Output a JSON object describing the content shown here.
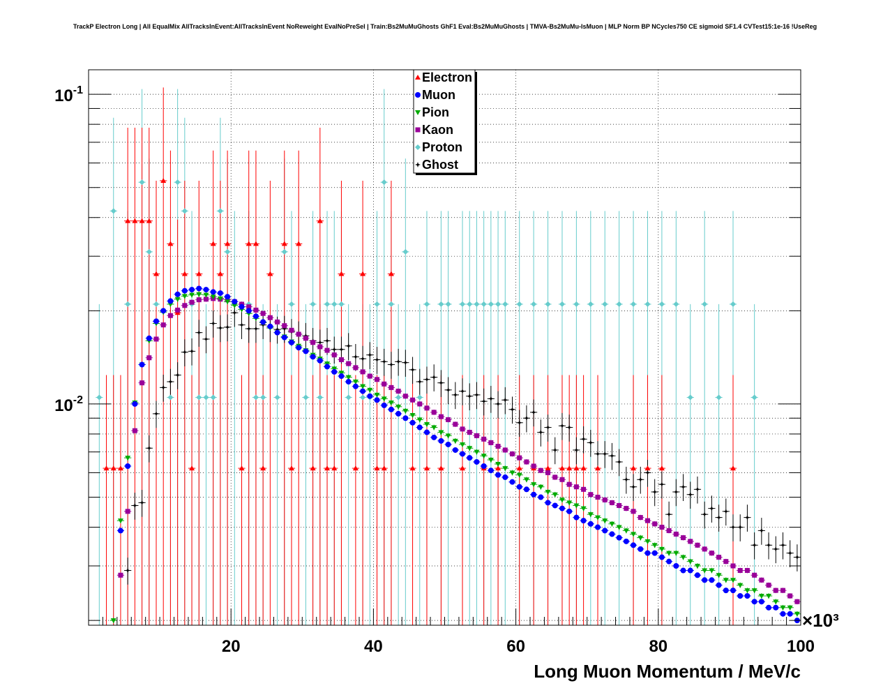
{
  "chart_data": {
    "type": "scatter",
    "title": "TrackP Electron Long | All EqualMix AllTracksInEvent:AllTracksInEvent NoReweight EvalNoPreSel | Train:Bs2MuMuGhosts GhF1 Eval:Bs2MuMuGhosts | TMVA-Bs2MuMu-IsMuon | MLP Norm BP NCycles750 CE sigmoid SF1.4 CVTest15:1e-16 !UseReg",
    "xlabel": "Long Muon Momentum / MeV/c",
    "x_multiplier": "×10³",
    "xlim": [
      0,
      100000
    ],
    "x_ticks": [
      20000,
      40000,
      60000,
      80000,
      100000
    ],
    "x_tick_labels": [
      "20",
      "40",
      "60",
      "80",
      "100"
    ],
    "ylim": [
      0.00193,
      0.12
    ],
    "y_scale": "log",
    "y_ticks": [
      0.01,
      0.1
    ],
    "y_tick_labels": [
      {
        "base": "10",
        "exp": "-2"
      },
      {
        "base": "10",
        "exp": "-1"
      }
    ],
    "grid": true,
    "legend_position": "top-center",
    "legend_labels": [
      "Electron",
      "Muon",
      "Pion",
      "Kaon",
      "Proton",
      "Ghost"
    ],
    "series": [
      {
        "name": "Electron",
        "marker": "triangle-up",
        "color": "#ff0000",
        "x": [
          2500,
          3500,
          4500,
          5500,
          6500,
          7500,
          8500,
          9500,
          10500,
          11500,
          12500,
          13500,
          14500,
          15500,
          17500,
          18500,
          19500,
          21500,
          22500,
          23500,
          24500,
          25500,
          27500,
          28500,
          29500,
          31500,
          32500,
          33500,
          34500,
          35500,
          37500,
          38500,
          40500,
          41500,
          42500,
          45500,
          47500,
          49500,
          52500,
          55500,
          57500,
          60500,
          62500,
          64500,
          66500,
          67500,
          68500,
          69500,
          71500,
          76500,
          78500,
          80500,
          90500
        ],
        "y": [
          0.0062,
          0.0062,
          0.0062,
          0.039,
          0.039,
          0.039,
          0.039,
          0.0263,
          0.0526,
          0.0329,
          0.0197,
          0.0263,
          0.0062,
          0.0263,
          0.0329,
          0.0263,
          0.0329,
          0.0062,
          0.0329,
          0.0329,
          0.0062,
          0.0263,
          0.0329,
          0.0062,
          0.0329,
          0.0062,
          0.039,
          0.0062,
          0.0062,
          0.0263,
          0.0062,
          0.0263,
          0.0062,
          0.0062,
          0.0263,
          0.0062,
          0.0062,
          0.0062,
          0.0062,
          0.0062,
          0.0062,
          0.0062,
          0.0062,
          0.0062,
          0.0062,
          0.0062,
          0.0062,
          0.0062,
          0.0062,
          0.0062,
          0.0062,
          0.0062,
          0.0062
        ]
      },
      {
        "name": "Muon",
        "marker": "circle",
        "color": "#0000ff",
        "x": [
          4500,
          5500,
          6500,
          7500,
          8500,
          9500,
          10500,
          11500,
          12500,
          13500,
          14500,
          15500,
          16500,
          17500,
          18500,
          19500,
          20500,
          21500,
          22500,
          23500,
          24500,
          25500,
          26500,
          27500,
          28500,
          29500,
          30500,
          31500,
          32500,
          33500,
          34500,
          35500,
          36500,
          37500,
          38500,
          39500,
          40500,
          41500,
          42500,
          43500,
          44500,
          45500,
          46500,
          47500,
          48500,
          49500,
          50500,
          51500,
          52500,
          53500,
          54500,
          55500,
          56500,
          57500,
          58500,
          59500,
          60500,
          61500,
          62500,
          63500,
          64500,
          65500,
          66500,
          67500,
          68500,
          69500,
          70500,
          71500,
          72500,
          73500,
          74500,
          75500,
          76500,
          77500,
          78500,
          79500,
          80500,
          81500,
          82500,
          83500,
          84500,
          85500,
          86500,
          87500,
          88500,
          89500,
          90500,
          91500,
          92500,
          93500,
          94500,
          95500,
          96500,
          97500,
          98500,
          99500
        ],
        "y": [
          0.0039,
          0.0063,
          0.01,
          0.0134,
          0.0163,
          0.0185,
          0.02,
          0.0215,
          0.0226,
          0.0232,
          0.0234,
          0.0236,
          0.0234,
          0.023,
          0.0228,
          0.0222,
          0.0214,
          0.0206,
          0.02,
          0.0192,
          0.0184,
          0.0178,
          0.017,
          0.0164,
          0.0158,
          0.0152,
          0.0148,
          0.0142,
          0.0138,
          0.0132,
          0.0127,
          0.0123,
          0.0118,
          0.0114,
          0.011,
          0.0106,
          0.0103,
          0.0099,
          0.0096,
          0.0093,
          0.009,
          0.0087,
          0.0084,
          0.0081,
          0.0078,
          0.0076,
          0.0074,
          0.0071,
          0.0069,
          0.0067,
          0.0065,
          0.0063,
          0.0061,
          0.0059,
          0.0058,
          0.0056,
          0.0054,
          0.0053,
          0.0051,
          0.005,
          0.0048,
          0.0047,
          0.0046,
          0.0045,
          0.0043,
          0.0042,
          0.0041,
          0.004,
          0.0039,
          0.0038,
          0.0037,
          0.0036,
          0.0035,
          0.0034,
          0.0033,
          0.0033,
          0.0032,
          0.0031,
          0.003,
          0.0029,
          0.0029,
          0.0028,
          0.0027,
          0.0027,
          0.0026,
          0.0025,
          0.0025,
          0.0024,
          0.0024,
          0.0023,
          0.0023,
          0.0022,
          0.0022,
          0.0021,
          0.0021,
          0.002
        ]
      },
      {
        "name": "Pion",
        "marker": "triangle-down",
        "color": "#00aa00",
        "x": [
          3500,
          4500,
          5500,
          6500,
          7500,
          8500,
          9500,
          10500,
          11500,
          12500,
          13500,
          14500,
          15500,
          16500,
          17500,
          18500,
          19500,
          20500,
          21500,
          22500,
          23500,
          24500,
          25500,
          26500,
          27500,
          28500,
          29500,
          30500,
          31500,
          32500,
          33500,
          34500,
          35500,
          36500,
          37500,
          38500,
          39500,
          40500,
          41500,
          42500,
          43500,
          44500,
          45500,
          46500,
          47500,
          48500,
          49500,
          50500,
          51500,
          52500,
          53500,
          54500,
          55500,
          56500,
          57500,
          58500,
          59500,
          60500,
          61500,
          62500,
          63500,
          64500,
          65500,
          66500,
          67500,
          68500,
          69500,
          70500,
          71500,
          72500,
          73500,
          74500,
          75500,
          76500,
          77500,
          78500,
          79500,
          80500,
          81500,
          82500,
          83500,
          84500,
          85500,
          86500,
          87500,
          88500,
          89500,
          90500,
          91500,
          92500,
          93500,
          94500,
          95500,
          96500,
          97500,
          98500,
          99500
        ],
        "y": [
          0.002,
          0.0042,
          0.0067,
          0.0101,
          0.0134,
          0.016,
          0.0182,
          0.0198,
          0.021,
          0.0218,
          0.0223,
          0.0225,
          0.0226,
          0.0225,
          0.0222,
          0.0219,
          0.0214,
          0.0208,
          0.0202,
          0.0196,
          0.0189,
          0.0183,
          0.0176,
          0.017,
          0.0165,
          0.0159,
          0.0154,
          0.0149,
          0.0144,
          0.014,
          0.0135,
          0.013,
          0.0126,
          0.0122,
          0.0118,
          0.0114,
          0.0111,
          0.0107,
          0.0104,
          0.0101,
          0.0098,
          0.0095,
          0.0092,
          0.0089,
          0.0086,
          0.0084,
          0.0081,
          0.0079,
          0.0076,
          0.0074,
          0.0072,
          0.007,
          0.0068,
          0.0066,
          0.0064,
          0.0062,
          0.006,
          0.0059,
          0.0057,
          0.0055,
          0.0054,
          0.0052,
          0.0051,
          0.0049,
          0.0048,
          0.0047,
          0.0046,
          0.0044,
          0.0043,
          0.0042,
          0.0041,
          0.004,
          0.0039,
          0.0038,
          0.0037,
          0.0036,
          0.0035,
          0.0034,
          0.0033,
          0.0033,
          0.0032,
          0.0031,
          0.003,
          0.0029,
          0.0029,
          0.0028,
          0.0027,
          0.0027,
          0.0026,
          0.0025,
          0.0025,
          0.0024,
          0.0024,
          0.0023,
          0.0022,
          0.0022,
          0.0021
        ]
      },
      {
        "name": "Kaon",
        "marker": "square",
        "color": "#990099",
        "x": [
          4500,
          5500,
          6500,
          7500,
          8500,
          9500,
          10500,
          11500,
          12500,
          13500,
          14500,
          15500,
          16500,
          17500,
          18500,
          19500,
          20500,
          21500,
          22500,
          23500,
          24500,
          25500,
          26500,
          27500,
          28500,
          29500,
          30500,
          31500,
          32500,
          33500,
          34500,
          35500,
          36500,
          37500,
          38500,
          39500,
          40500,
          41500,
          42500,
          43500,
          44500,
          45500,
          46500,
          47500,
          48500,
          49500,
          50500,
          51500,
          52500,
          53500,
          54500,
          55500,
          56500,
          57500,
          58500,
          59500,
          60500,
          61500,
          62500,
          63500,
          64500,
          65500,
          66500,
          67500,
          68500,
          69500,
          70500,
          71500,
          72500,
          73500,
          74500,
          75500,
          76500,
          77500,
          78500,
          79500,
          80500,
          81500,
          82500,
          83500,
          84500,
          85500,
          86500,
          87500,
          88500,
          89500,
          90500,
          91500,
          92500,
          93500,
          94500,
          95500,
          96500,
          97500,
          98500,
          99500
        ],
        "y": [
          0.0028,
          0.0045,
          0.0082,
          0.0117,
          0.0141,
          0.0162,
          0.018,
          0.0193,
          0.0201,
          0.0208,
          0.0213,
          0.0217,
          0.0218,
          0.0219,
          0.0218,
          0.0217,
          0.0214,
          0.021,
          0.0206,
          0.0201,
          0.0196,
          0.019,
          0.0184,
          0.0179,
          0.0173,
          0.0168,
          0.0163,
          0.0158,
          0.0153,
          0.0149,
          0.0144,
          0.0139,
          0.0135,
          0.0131,
          0.0127,
          0.0123,
          0.012,
          0.0116,
          0.0113,
          0.011,
          0.0106,
          0.0103,
          0.01,
          0.0097,
          0.0094,
          0.0091,
          0.0089,
          0.0086,
          0.0083,
          0.0081,
          0.0079,
          0.0077,
          0.0075,
          0.0073,
          0.0071,
          0.0069,
          0.0067,
          0.0065,
          0.0063,
          0.0061,
          0.006,
          0.0058,
          0.0057,
          0.0055,
          0.0054,
          0.0053,
          0.0051,
          0.005,
          0.0049,
          0.0048,
          0.0047,
          0.0046,
          0.0045,
          0.0043,
          0.0042,
          0.0041,
          0.004,
          0.0039,
          0.0038,
          0.0037,
          0.0036,
          0.0035,
          0.0034,
          0.0033,
          0.0032,
          0.0031,
          0.003,
          0.0029,
          0.0029,
          0.0028,
          0.0027,
          0.0026,
          0.0025,
          0.0025,
          0.0024,
          0.0023
        ]
      },
      {
        "name": "Proton",
        "marker": "diamond",
        "color": "#66cccc",
        "x": [
          1500,
          3500,
          5500,
          7500,
          8500,
          9500,
          11500,
          12500,
          13500,
          14500,
          15500,
          16500,
          17500,
          18500,
          19500,
          20500,
          22500,
          23500,
          24500,
          26500,
          27500,
          28500,
          30500,
          31500,
          32500,
          33500,
          34500,
          35500,
          36500,
          38500,
          39500,
          40500,
          41500,
          42500,
          43500,
          44500,
          46500,
          47500,
          49500,
          50500,
          52500,
          53500,
          54500,
          55500,
          56500,
          57500,
          58500,
          60500,
          62500,
          64500,
          66500,
          68500,
          70500,
          72500,
          74500,
          76500,
          78500,
          80500,
          82500,
          84500,
          86500,
          88500,
          90500,
          93500
        ],
        "y": [
          0.0105,
          0.042,
          0.021,
          0.052,
          0.031,
          0.021,
          0.0105,
          0.052,
          0.042,
          0.021,
          0.0105,
          0.0105,
          0.0105,
          0.042,
          0.031,
          0.021,
          0.021,
          0.0105,
          0.0105,
          0.0105,
          0.031,
          0.021,
          0.0105,
          0.021,
          0.0105,
          0.021,
          0.021,
          0.021,
          0.0105,
          0.0105,
          0.0105,
          0.021,
          0.052,
          0.021,
          0.0105,
          0.031,
          0.0105,
          0.021,
          0.021,
          0.021,
          0.021,
          0.021,
          0.021,
          0.021,
          0.021,
          0.021,
          0.021,
          0.021,
          0.021,
          0.021,
          0.021,
          0.021,
          0.021,
          0.021,
          0.021,
          0.021,
          0.021,
          0.021,
          0.021,
          0.0105,
          0.021,
          0.0105,
          0.021,
          0.0105
        ]
      },
      {
        "name": "Ghost",
        "marker": "star",
        "color": "#000000",
        "x": [
          5500,
          6500,
          7500,
          8500,
          9500,
          10500,
          11500,
          12500,
          13500,
          14500,
          15500,
          16500,
          17500,
          18500,
          19500,
          20500,
          21500,
          22500,
          23500,
          24500,
          25500,
          26500,
          27500,
          28500,
          29500,
          30500,
          31500,
          32500,
          33500,
          34500,
          35500,
          36500,
          37500,
          38500,
          39500,
          40500,
          41500,
          42500,
          43500,
          44500,
          45500,
          46500,
          47500,
          48500,
          49500,
          50500,
          51500,
          52500,
          53500,
          54500,
          55500,
          56500,
          57500,
          58500,
          59500,
          60500,
          61500,
          62500,
          63500,
          64500,
          65500,
          66500,
          67500,
          68500,
          69500,
          70500,
          71500,
          72500,
          73500,
          74500,
          75500,
          76500,
          77500,
          78500,
          79500,
          80500,
          81500,
          82500,
          83500,
          84500,
          85500,
          86500,
          87500,
          88500,
          89500,
          90500,
          91500,
          92500,
          93500,
          94500,
          95500,
          96500,
          97500,
          98500,
          99500
        ],
        "y": [
          0.0029,
          0.0047,
          0.0048,
          0.0072,
          0.0093,
          0.0113,
          0.0118,
          0.0124,
          0.0147,
          0.0148,
          0.017,
          0.0162,
          0.0182,
          0.0176,
          0.0177,
          0.0197,
          0.018,
          0.0175,
          0.0175,
          0.018,
          0.0176,
          0.0174,
          0.0175,
          0.0171,
          0.0168,
          0.0166,
          0.016,
          0.0158,
          0.016,
          0.015,
          0.015,
          0.0154,
          0.0142,
          0.014,
          0.0144,
          0.0139,
          0.0137,
          0.0134,
          0.0137,
          0.0136,
          0.0129,
          0.0118,
          0.012,
          0.0122,
          0.0117,
          0.0111,
          0.0107,
          0.011,
          0.0106,
          0.0107,
          0.0102,
          0.0104,
          0.01,
          0.0103,
          0.0096,
          0.0087,
          0.009,
          0.0094,
          0.0081,
          0.0084,
          0.0071,
          0.0085,
          0.0084,
          0.0071,
          0.0077,
          0.0075,
          0.0069,
          0.0069,
          0.0068,
          0.0065,
          0.0057,
          0.0054,
          0.0057,
          0.006,
          0.0052,
          0.0055,
          0.0044,
          0.0052,
          0.0054,
          0.0051,
          0.0053,
          0.0044,
          0.0046,
          0.0043,
          0.0045,
          0.004,
          0.004,
          0.0043,
          0.0035,
          0.0039,
          0.0035,
          0.0034,
          0.0035,
          0.0033,
          0.0032
        ]
      }
    ]
  }
}
